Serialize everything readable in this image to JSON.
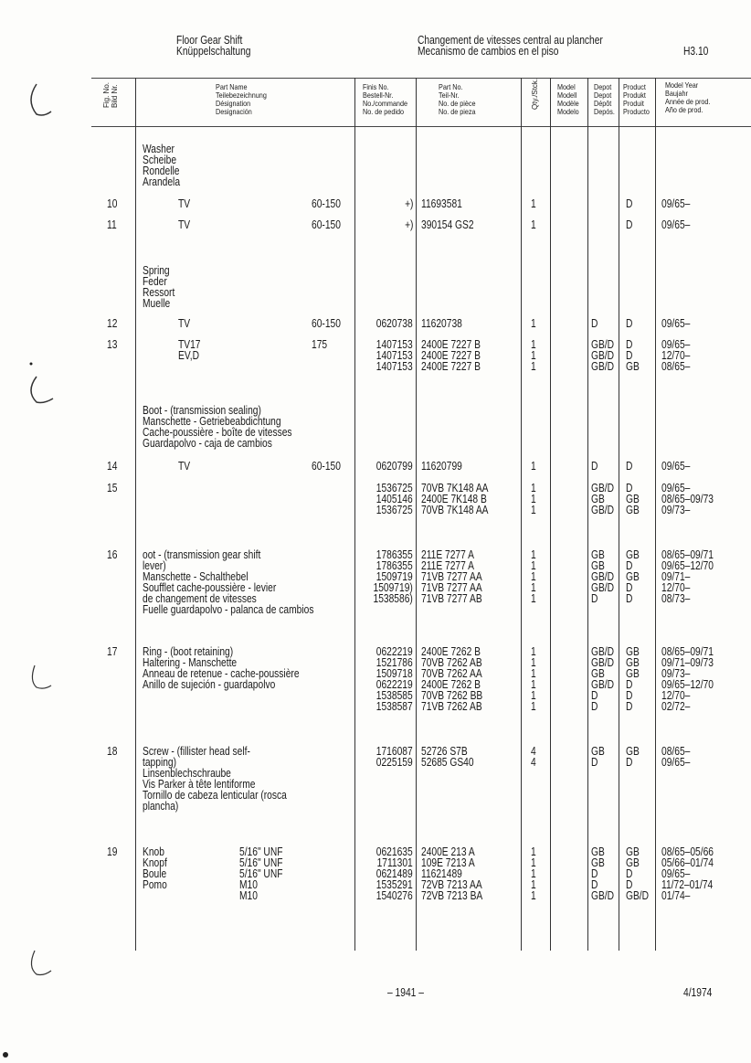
{
  "header": {
    "title_en": "Floor Gear Shift",
    "title_de": "Knüppelschaltung",
    "title_fr": "Changement de vitesses central au plancher",
    "title_es": "Mecanismo de cambios en el piso",
    "section": "H3.10"
  },
  "columns": {
    "fig": [
      "Fig. No.",
      "Bild Nr."
    ],
    "part_name": [
      "Part Name",
      "Teilebezeichnung",
      "Désignation",
      "Designación"
    ],
    "finis": [
      "Finis No.",
      "Bestell-Nr.",
      "No./commande",
      "No. de pedido"
    ],
    "part_no": [
      "Part No.",
      "Teil-Nr.",
      "No. de pièce",
      "No. de pieza"
    ],
    "qty": "Qty./Stck.",
    "model": [
      "Model",
      "Modell",
      "Modèle",
      "Modelo"
    ],
    "depot": [
      "Depot",
      "Depot",
      "Dépôt",
      "Depós."
    ],
    "product": [
      "Product",
      "Produkt",
      "Produit",
      "Producto"
    ],
    "year": [
      "Model Year",
      "Baujahr",
      "Année de prod.",
      "Año de prod."
    ]
  },
  "groups": [
    {
      "fig": "",
      "desc": [
        "Washer",
        "Scheibe",
        "Rondelle",
        "Arandela"
      ],
      "rows": []
    },
    {
      "fig": "10",
      "variant": [
        "TV"
      ],
      "spec": "60-150",
      "rows": [
        {
          "finis": "+)",
          "part": "11693581",
          "qty": "1",
          "depot": "",
          "product": "D",
          "year": "09/65–"
        }
      ]
    },
    {
      "fig": "11",
      "variant": [
        "TV"
      ],
      "spec": "60-150",
      "rows": [
        {
          "finis": "+)",
          "part": "390154 GS2",
          "qty": "1",
          "depot": "",
          "product": "D",
          "year": "09/65–"
        }
      ]
    },
    {
      "fig": "",
      "desc": [
        "Spring",
        "Feder",
        "Ressort",
        "Muelle"
      ],
      "rows": []
    },
    {
      "fig": "12",
      "variant": [
        "TV"
      ],
      "spec": "60-150",
      "rows": [
        {
          "finis": "0620738",
          "part": "11620738",
          "qty": "1",
          "depot": "D",
          "product": "D",
          "year": "09/65–"
        }
      ]
    },
    {
      "fig": "13",
      "variant": [
        "TV17",
        "EV,D"
      ],
      "spec": "175",
      "rows": [
        {
          "finis": "1407153",
          "part": "2400E 7227 B",
          "qty": "1",
          "depot": "GB/D",
          "product": "D",
          "year": "09/65–"
        },
        {
          "finis": "1407153",
          "part": "2400E 7227 B",
          "qty": "1",
          "depot": "GB/D",
          "product": "D",
          "year": "12/70–"
        },
        {
          "finis": "1407153",
          "part": "2400E 7227 B",
          "qty": "1",
          "depot": "GB/D",
          "product": "GB",
          "year": "08/65–"
        }
      ]
    },
    {
      "fig": "",
      "desc": [
        "Boot - (transmission sealing)",
        "Manschette - Getriebeabdichtung",
        "Cache-poussière - boîte de vitesses",
        "Guardapolvo - caja de cambios"
      ],
      "rows": []
    },
    {
      "fig": "14",
      "variant": [
        "TV"
      ],
      "spec": "60-150",
      "rows": [
        {
          "finis": "0620799",
          "part": "11620799",
          "qty": "1",
          "depot": "D",
          "product": "D",
          "year": "09/65–"
        }
      ]
    },
    {
      "fig": "15",
      "rows": [
        {
          "finis": "1536725",
          "part": "70VB 7K148 AA",
          "qty": "1",
          "depot": "GB/D",
          "product": "D",
          "year": "09/65–"
        },
        {
          "finis": "1405146",
          "part": "2400E 7K148 B",
          "qty": "1",
          "depot": "GB",
          "product": "GB",
          "year": "08/65–09/73"
        },
        {
          "finis": "1536725",
          "part": "70VB 7K148 AA",
          "qty": "1",
          "depot": "GB/D",
          "product": "GB",
          "year": "09/73–"
        }
      ]
    },
    {
      "fig": "16",
      "desc": [
        "oot - (transmission gear shift",
        "lever)",
        "Manschette - Schalthebel",
        "Soufflet cache-poussière - levier",
        "de changement de vitesses",
        "Fuelle guardapolvo - palanca de cambios"
      ],
      "rows": [
        {
          "finis": "1786355",
          "part": "211E 7277 A",
          "qty": "1",
          "depot": "GB",
          "product": "GB",
          "year": "08/65–09/71"
        },
        {
          "finis": "1786355",
          "part": "211E 7277 A",
          "qty": "1",
          "depot": "GB",
          "product": "D",
          "year": "09/65–12/70"
        },
        {
          "finis": "1509719",
          "part": "71VB 7277 AA",
          "qty": "1",
          "depot": "GB/D",
          "product": "GB",
          "year": "09/71–"
        },
        {
          "finis": "1509719)",
          "part": "71VB 7277 AA",
          "qty": "1",
          "depot": "GB/D",
          "product": "D",
          "year": "12/70–"
        },
        {
          "finis": "1538586)",
          "part": "71VB 7277 AB",
          "qty": "1",
          "depot": "D",
          "product": "D",
          "year": "08/73–"
        }
      ]
    },
    {
      "fig": "17",
      "desc": [
        "Ring - (boot retaining)",
        "Haltering - Manschette",
        "Anneau de retenue - cache-poussière",
        "Anillo de sujeción - guardapolvo"
      ],
      "rows": [
        {
          "finis": "0622219",
          "part": "2400E 7262 B",
          "qty": "1",
          "depot": "GB/D",
          "product": "GB",
          "year": "08/65–09/71"
        },
        {
          "finis": "1521786",
          "part": "70VB 7262 AB",
          "qty": "1",
          "depot": "GB/D",
          "product": "GB",
          "year": "09/71–09/73"
        },
        {
          "finis": "1509718",
          "part": "70VB 7262 AA",
          "qty": "1",
          "depot": "GB",
          "product": "GB",
          "year": "09/73–"
        },
        {
          "finis": "0622219",
          "part": "2400E 7262 B",
          "qty": "1",
          "depot": "GB/D",
          "product": "D",
          "year": "09/65–12/70"
        },
        {
          "finis": "1538585",
          "part": "70VB 7262 BB",
          "qty": "1",
          "depot": "D",
          "product": "D",
          "year": "12/70–"
        },
        {
          "finis": "1538587",
          "part": "71VB 7262 AB",
          "qty": "1",
          "depot": "D",
          "product": "D",
          "year": "02/72–"
        }
      ]
    },
    {
      "fig": "18",
      "desc": [
        "Screw - (fillister head self-",
        "tapping)",
        "Linsenblechschraube",
        "Vis Parker à tête lentiforme",
        "Tornillo de cabeza lenticular (rosca",
        "plancha)"
      ],
      "rows": [
        {
          "finis": "1716087",
          "part": "52726 S7B",
          "qty": "4",
          "depot": "GB",
          "product": "GB",
          "year": "08/65–"
        },
        {
          "finis": "0225159",
          "part": "52685 GS40",
          "qty": "4",
          "depot": "D",
          "product": "D",
          "year": "09/65–"
        }
      ]
    },
    {
      "fig": "19",
      "desc": [
        "Knob",
        "Knopf",
        "Boule",
        "Pomo"
      ],
      "rows": [
        {
          "thread": "5/16\" UNF",
          "finis": "0621635",
          "part": "2400E 213 A",
          "qty": "1",
          "depot": "GB",
          "product": "GB",
          "year": "08/65–05/66"
        },
        {
          "thread": "5/16\" UNF",
          "finis": "1711301",
          "part": "109E 7213 A",
          "qty": "1",
          "depot": "GB",
          "product": "GB",
          "year": "05/66–01/74"
        },
        {
          "thread": "5/16\" UNF",
          "finis": "0621489",
          "part": "11621489",
          "qty": "1",
          "depot": "D",
          "product": "D",
          "year": "09/65–"
        },
        {
          "thread": "M10",
          "finis": "1535291",
          "part": "72VB 7213 AA",
          "qty": "1",
          "depot": "D",
          "product": "D",
          "year": "11/72–01/74"
        },
        {
          "thread": "M10",
          "finis": "1540276",
          "part": "72VB 7213 BA",
          "qty": "1",
          "depot": "GB/D",
          "product": "GB/D",
          "year": "01/74–"
        }
      ]
    }
  ],
  "footer": {
    "page": "– 1941 –",
    "date": "4/1974"
  }
}
